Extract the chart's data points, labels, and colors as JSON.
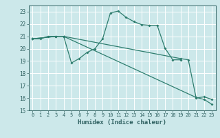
{
  "line1": {
    "x": [
      0,
      1,
      2,
      3,
      4,
      5,
      6,
      7,
      8,
      9,
      10,
      11,
      12,
      13,
      14,
      15,
      16,
      17,
      18,
      19
    ],
    "y": [
      20.8,
      20.8,
      21.0,
      21.0,
      21.0,
      18.85,
      19.2,
      19.7,
      20.0,
      20.8,
      22.9,
      23.05,
      22.55,
      22.2,
      21.95,
      21.9,
      21.9,
      20.05,
      19.1,
      19.1
    ]
  },
  "line2": {
    "x": [
      0,
      3,
      4,
      21,
      22,
      23
    ],
    "y": [
      20.8,
      21.0,
      21.0,
      16.05,
      15.9,
      15.5
    ]
  },
  "line3": {
    "x": [
      0,
      3,
      4,
      19,
      20,
      21,
      22,
      23
    ],
    "y": [
      20.8,
      21.0,
      21.0,
      19.2,
      19.1,
      16.0,
      16.1,
      15.9
    ]
  },
  "xlim": [
    -0.5,
    23.5
  ],
  "ylim": [
    15,
    23.5
  ],
  "yticks": [
    15,
    16,
    17,
    18,
    19,
    20,
    21,
    22,
    23
  ],
  "xticks": [
    0,
    1,
    2,
    3,
    4,
    5,
    6,
    7,
    8,
    9,
    10,
    11,
    12,
    13,
    14,
    15,
    16,
    17,
    18,
    19,
    20,
    21,
    22,
    23
  ],
  "xlabel": "Humidex (Indice chaleur)",
  "bg_color": "#cce8ea",
  "grid_color": "#ffffff",
  "line_color": "#2e7d6e",
  "tick_color": "#2e6060",
  "label_color": "#2e6060"
}
